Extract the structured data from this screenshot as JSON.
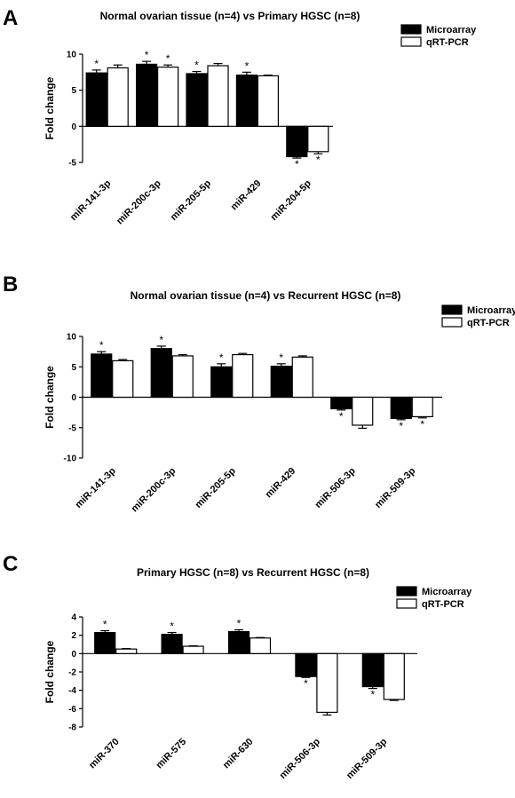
{
  "colors": {
    "microarray": "#000000",
    "qrtpcr": "#ffffff",
    "axis": "#000000"
  },
  "chart_data": [
    {
      "panel_letter": "A",
      "type": "bar",
      "title": "Normal ovarian tissue (n=4) vs Primary HGSC (n=8)",
      "ylabel": "Fold change",
      "xlabel": "",
      "ylim": [
        -5,
        10
      ],
      "yticks": [
        -5,
        0,
        5,
        10
      ],
      "legend_position": "top-right",
      "categories": [
        "miR-141-3p",
        "miR-200c-3p",
        "miR-205-5p",
        "miR-429",
        "miR-204-5p"
      ],
      "series": [
        {
          "name": "Microarray",
          "values": [
            7.4,
            8.6,
            7.3,
            7.1,
            -4.2
          ],
          "errors": [
            0.4,
            0.4,
            0.3,
            0.4,
            0.2
          ],
          "sig": [
            true,
            true,
            true,
            true,
            true
          ]
        },
        {
          "name": "qRT-PCR",
          "values": [
            8.1,
            8.2,
            8.4,
            7.0,
            -3.5
          ],
          "errors": [
            0.4,
            0.3,
            0.3,
            0.1,
            0.3
          ],
          "sig": [
            false,
            true,
            false,
            false,
            true
          ]
        }
      ],
      "sig_marker": "*"
    },
    {
      "panel_letter": "B",
      "type": "bar",
      "title": "Normal ovarian tissue (n=4) vs Recurrent HGSC (n=8)",
      "ylabel": "Fold change",
      "xlabel": "",
      "ylim": [
        -10,
        10
      ],
      "yticks": [
        -10,
        -5,
        0,
        5,
        10
      ],
      "legend_position": "top-right",
      "categories": [
        "miR-141-3p",
        "miR-200c-3p",
        "miR-205-5p",
        "miR-429",
        "miR-506-3p",
        "miR-509-3p"
      ],
      "series": [
        {
          "name": "Microarray",
          "values": [
            7.1,
            8.0,
            5.0,
            5.1,
            -1.9,
            -3.5
          ],
          "errors": [
            0.4,
            0.4,
            0.5,
            0.4,
            0.2,
            0.2
          ],
          "sig": [
            true,
            true,
            true,
            true,
            true,
            true
          ]
        },
        {
          "name": "qRT-PCR",
          "values": [
            6.0,
            6.8,
            7.0,
            6.6,
            -4.6,
            -3.2
          ],
          "errors": [
            0.2,
            0.2,
            0.2,
            0.2,
            0.5,
            0.2
          ],
          "sig": [
            false,
            false,
            false,
            false,
            false,
            true
          ]
        }
      ],
      "sig_marker": "*"
    },
    {
      "panel_letter": "C",
      "type": "bar",
      "title": "Primary HGSC (n=8) vs Recurrent HGSC (n=8)",
      "ylabel": "Fold change",
      "xlabel": "",
      "ylim": [
        -8,
        4
      ],
      "yticks": [
        -8,
        -6,
        -4,
        -2,
        0,
        2,
        4
      ],
      "legend_position": "top-right",
      "categories": [
        "miR-370",
        "miR-575",
        "miR-630",
        "miR-506-3p",
        "miR-509-3p"
      ],
      "series": [
        {
          "name": "Microarray",
          "values": [
            2.3,
            2.1,
            2.4,
            -2.5,
            -3.6
          ],
          "errors": [
            0.2,
            0.2,
            0.2,
            0.1,
            0.2
          ],
          "sig": [
            true,
            true,
            true,
            true,
            true
          ]
        },
        {
          "name": "qRT-PCR",
          "values": [
            0.5,
            0.8,
            1.7,
            -6.4,
            -5.0
          ],
          "errors": [
            0.05,
            0.05,
            0.05,
            0.3,
            0.1
          ],
          "sig": [
            false,
            false,
            false,
            false,
            false
          ]
        }
      ],
      "sig_marker": "*"
    }
  ]
}
